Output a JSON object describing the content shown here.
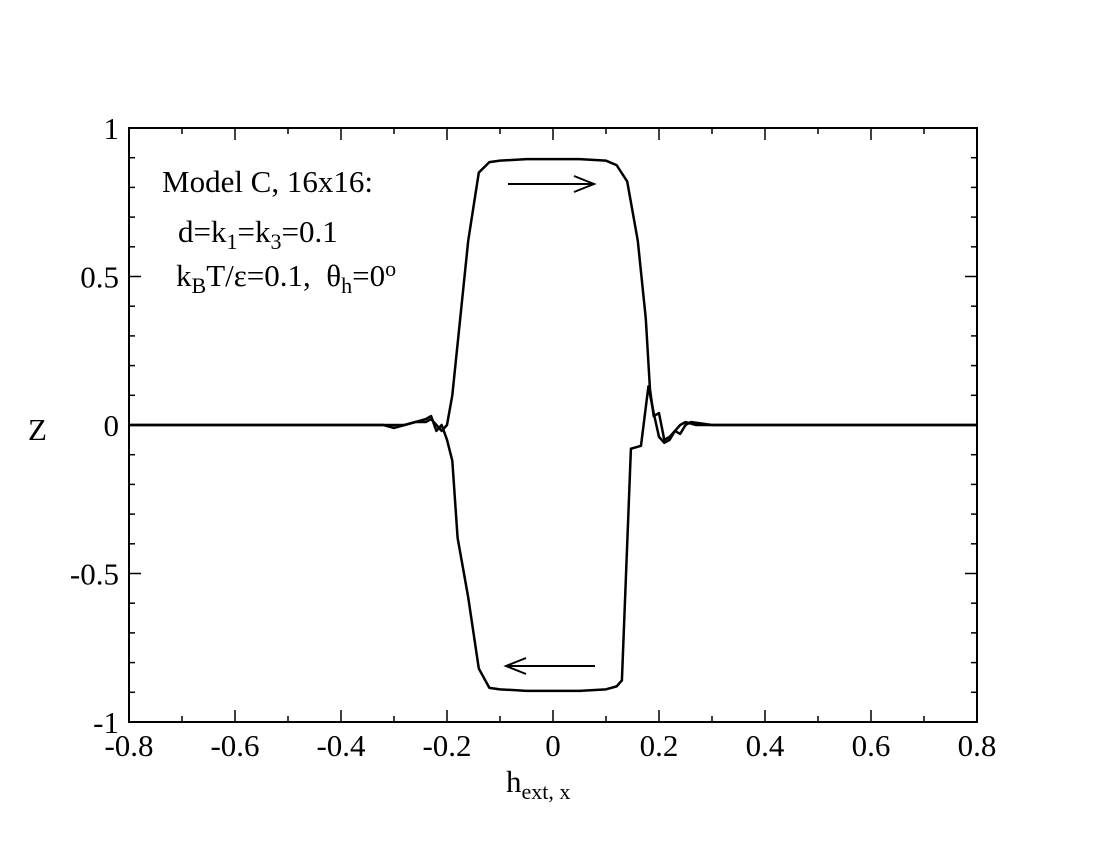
{
  "chart_data": {
    "type": "line",
    "xlabel": [
      {
        "text": "h"
      },
      {
        "sub": "ext, x"
      }
    ],
    "ylabel": "Z",
    "annotations": [
      [
        {
          "text": "Model C, 16x16:"
        }
      ],
      [
        {
          "text": "d=k"
        },
        {
          "sub": "1"
        },
        {
          "text": "=k"
        },
        {
          "sub": "3"
        },
        {
          "text": "=0.1"
        }
      ],
      [
        {
          "text": "k"
        },
        {
          "sub": "B"
        },
        {
          "text": "T/ε=0.1,  θ"
        },
        {
          "sub": "h"
        },
        {
          "text": "=0"
        },
        {
          "sup": "o"
        }
      ]
    ],
    "xlim": [
      -0.8,
      0.8
    ],
    "ylim": [
      -1,
      1
    ],
    "xticks": [
      -0.8,
      -0.6,
      -0.4,
      -0.2,
      0,
      0.2,
      0.4,
      0.6,
      0.8
    ],
    "yticks": [
      -1,
      -0.5,
      0,
      0.5,
      1
    ],
    "xminorticks": [
      -0.7,
      -0.5,
      -0.3,
      -0.1,
      0.1,
      0.3,
      0.5,
      0.7
    ],
    "yminorticks": [
      -0.9,
      -0.8,
      -0.7,
      -0.6,
      -0.4,
      -0.3,
      -0.2,
      -0.1,
      0.1,
      0.2,
      0.3,
      0.4,
      0.6,
      0.7,
      0.8,
      0.9
    ],
    "series": [
      {
        "color": "#000000",
        "x": [
          -0.8,
          -0.6,
          -0.4,
          -0.32,
          -0.3,
          -0.28,
          -0.26,
          -0.24,
          -0.23,
          -0.22,
          -0.21,
          -0.2,
          -0.19,
          -0.175,
          -0.16,
          -0.14,
          -0.12,
          -0.1,
          -0.05,
          0,
          0.05,
          0.1,
          0.12,
          0.14,
          0.16,
          0.175,
          0.183,
          0.19,
          0.2,
          0.21,
          0.22,
          0.23,
          0.24,
          0.25,
          0.26,
          0.3,
          0.4,
          0.6,
          0.8
        ],
        "values": [
          0,
          0,
          0,
          0,
          -0.01,
          0,
          0.01,
          0.01,
          0.02,
          0,
          -0.02,
          0,
          0.1,
          0.36,
          0.62,
          0.85,
          0.885,
          0.89,
          0.895,
          0.895,
          0.895,
          0.89,
          0.875,
          0.82,
          0.62,
          0.36,
          0.12,
          0.03,
          0.04,
          -0.05,
          -0.04,
          -0.02,
          -0.03,
          0,
          0.01,
          0,
          0,
          0,
          0
        ]
      },
      {
        "color": "#000000",
        "x": [
          -0.8,
          -0.6,
          -0.4,
          -0.3,
          -0.28,
          -0.26,
          -0.24,
          -0.23,
          -0.22,
          -0.21,
          -0.2,
          -0.19,
          -0.18,
          -0.16,
          -0.14,
          -0.12,
          -0.1,
          -0.05,
          0,
          0.05,
          0.1,
          0.12,
          0.13,
          0.147,
          0.166,
          0.18,
          0.19,
          0.2,
          0.21,
          0.22,
          0.23,
          0.24,
          0.25,
          0.27,
          0.3,
          0.4,
          0.6,
          0.8
        ],
        "values": [
          0,
          0,
          0,
          0,
          0,
          0.01,
          0.02,
          0.03,
          -0.02,
          0,
          -0.05,
          -0.12,
          -0.38,
          -0.58,
          -0.82,
          -0.885,
          -0.89,
          -0.895,
          -0.895,
          -0.895,
          -0.89,
          -0.88,
          -0.86,
          -0.08,
          -0.07,
          0.13,
          0.04,
          -0.04,
          -0.06,
          -0.05,
          -0.02,
          0,
          0.01,
          0,
          0,
          0,
          0,
          0
        ]
      }
    ]
  }
}
